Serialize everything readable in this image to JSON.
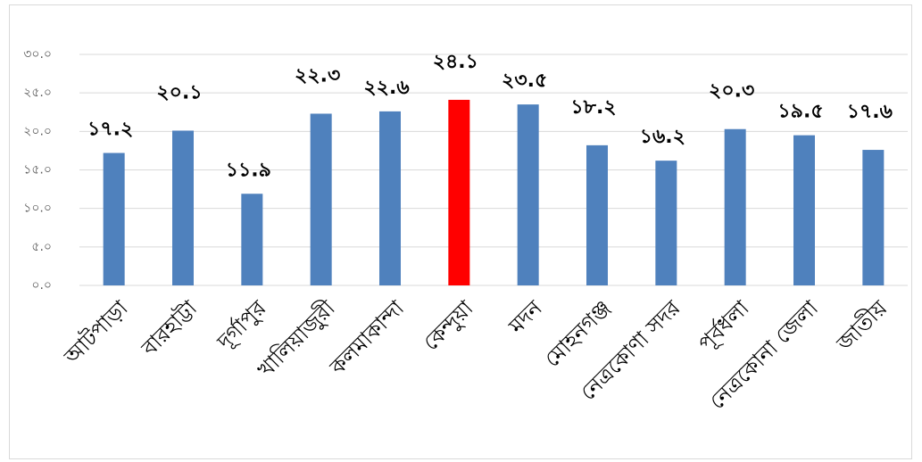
{
  "chart_data": {
    "type": "bar",
    "categories": [
      "আটপাড়া",
      "বারহাট্টা",
      "দূর্গাপুর",
      "খালিয়াজুরী",
      "কলমাকান্দা",
      "কেন্দুয়া",
      "মদন",
      "মোহনগঞ্জ",
      "নেত্রকোণা সদর",
      "পূর্বধলা",
      "নেত্রকোনা জেলা",
      "জাতীয়"
    ],
    "values": [
      17.2,
      20.1,
      11.9,
      22.3,
      22.6,
      24.1,
      23.5,
      18.2,
      16.2,
      20.3,
      19.5,
      17.6
    ],
    "value_labels": [
      "১৭.২",
      "২০.১",
      "১১.৯",
      "২২.৩",
      "২২.৬",
      "২৪.১",
      "২৩.৫",
      "১৮.২",
      "১৬.২",
      "২০.৩",
      "১৯.৫",
      "১৭.৬"
    ],
    "colors": [
      "#4f81bd",
      "#4f81bd",
      "#4f81bd",
      "#4f81bd",
      "#4f81bd",
      "#ff0000",
      "#4f81bd",
      "#4f81bd",
      "#4f81bd",
      "#4f81bd",
      "#4f81bd",
      "#4f81bd"
    ],
    "ylim": [
      0,
      30
    ],
    "yticks": [
      {
        "value": 0,
        "label": "০.০"
      },
      {
        "value": 5,
        "label": "৫.০"
      },
      {
        "value": 10,
        "label": "১০.০"
      },
      {
        "value": 15,
        "label": "১৫.০"
      },
      {
        "value": 20,
        "label": "২০.০"
      },
      {
        "value": 25,
        "label": "২৫.০"
      },
      {
        "value": 30,
        "label": "৩০.০"
      }
    ],
    "grid": true
  }
}
